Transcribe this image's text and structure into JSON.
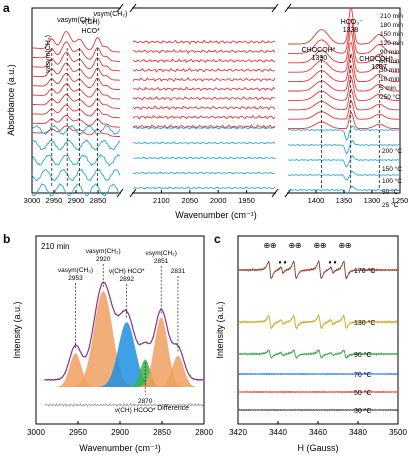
{
  "chart_data": [
    {
      "panel": "a",
      "type": "line",
      "ylabel": "Absorbance (a.u.)",
      "xlabel": "Wavenumber (cm⁻¹)",
      "x_reversed": true,
      "segments": [
        {
          "xlim": [
            3000,
            2800
          ],
          "ticks": [
            3000,
            2950,
            2900,
            2850
          ]
        },
        {
          "xlim": [
            2150,
            1900
          ],
          "ticks": [
            2100,
            2050,
            2000,
            1950
          ]
        },
        {
          "xlim": [
            1450,
            1250
          ],
          "ticks": [
            1400,
            1350,
            1300,
            1250
          ]
        }
      ],
      "legend_red": [
        "210 min",
        "180 min",
        "150 min",
        "120 min",
        "90 min",
        "60 min",
        "30 min",
        "10 min",
        "5 min",
        "250 °C"
      ],
      "legend_blue": [
        "200 °C",
        "150 °C",
        "100 °C",
        "50 °C",
        "25 °C"
      ],
      "annotations": [
        {
          "label": "νasym(CH₃)",
          "x": 2955
        },
        {
          "label": "νasym(CH₂)",
          "x": 2920
        },
        {
          "label": "ν(CH)",
          "x": 2892
        },
        {
          "label": "HCO*",
          "x": 2892
        },
        {
          "label": "νsym(CH₂)",
          "x": 2851
        },
        {
          "label": "CHOCOH*",
          "x": 1390
        },
        {
          "label": "1390",
          "x": 1390
        },
        {
          "label": "HCO₃⁻",
          "x": 1338
        },
        {
          "label": "1338",
          "x": 1338
        },
        {
          "label": "CHOCOH*",
          "x": 1287
        },
        {
          "label": "1287",
          "x": 1287
        }
      ],
      "colors": {
        "reaction": "#e0393b",
        "heating": "#29a8d8"
      }
    },
    {
      "panel": "b",
      "type": "area",
      "title": "210 min",
      "ylabel": "Intensity (a.u.)",
      "xlabel": "Wavenumber (cm⁻¹)",
      "x_reversed": true,
      "xlim": [
        3000,
        2800
      ],
      "ticks": [
        3000,
        2950,
        2900,
        2850,
        2800
      ],
      "peaks": [
        {
          "x": 2953,
          "height": 0.28,
          "width": 7,
          "color": "#f0a060",
          "label": "νasym(CH₃)",
          "value": "2953"
        },
        {
          "x": 2920,
          "height": 0.8,
          "width": 11,
          "color": "#f0a060",
          "label": "νasym(CH₂)",
          "value": "2920"
        },
        {
          "x": 2892,
          "height": 0.54,
          "width": 10,
          "color": "#1f8fe0",
          "label": "ν(CH) HCO*",
          "value": "2892"
        },
        {
          "x": 2870,
          "height": 0.23,
          "width": 6,
          "color": "#3ab54a",
          "label": "ν(CH) HCOO*",
          "value": "2870"
        },
        {
          "x": 2851,
          "height": 0.58,
          "width": 8,
          "color": "#f0a060",
          "label": "νsym(CH₂)",
          "value": "2851"
        },
        {
          "x": 2831,
          "height": 0.26,
          "width": 7,
          "color": "#f0a060",
          "label": "",
          "value": "2831"
        }
      ],
      "envelope_color": "#d93fd6",
      "difference_label": "Difference"
    },
    {
      "panel": "c",
      "type": "line",
      "ylabel": "Intensity (a.u.)",
      "xlabel": "H (Gauss)",
      "xlim": [
        3420,
        3500
      ],
      "ticks": [
        3420,
        3440,
        3460,
        3480,
        3500
      ],
      "series": [
        {
          "name": "170 °C",
          "color": "#8b3a2f",
          "amplitude": 1.0
        },
        {
          "name": "130 °C",
          "color": "#d4a31a",
          "amplitude": 0.75
        },
        {
          "name": "90 °C",
          "color": "#3aa04a",
          "amplitude": 0.45
        },
        {
          "name": "70 °C",
          "color": "#1f78d4",
          "amplitude": 0
        },
        {
          "name": "50 °C",
          "color": "#e03a3a",
          "amplitude": 0
        },
        {
          "name": "30 °C",
          "color": "#444444",
          "amplitude": 0
        }
      ],
      "quartet_lines": [
        3436,
        3448.5,
        3461,
        3473.5
      ],
      "doublet_lines": [
        3442,
        3467
      ],
      "markers": {
        "circle_plus": "⊕",
        "diamond": "♦"
      }
    }
  ],
  "panel_labels": [
    "a",
    "b",
    "c"
  ]
}
